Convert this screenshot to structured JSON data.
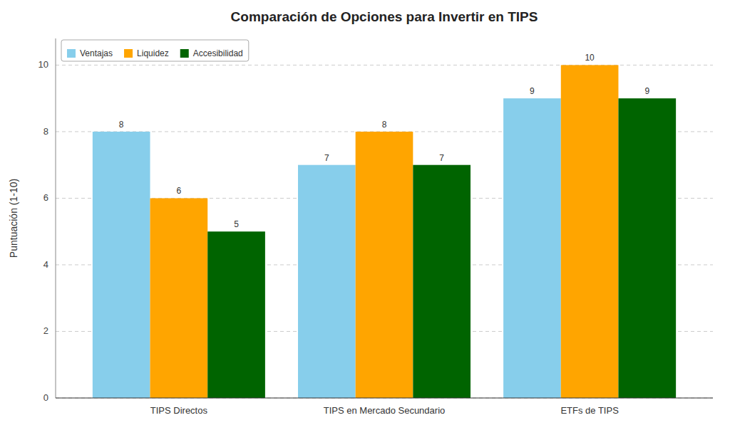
{
  "chart_data": {
    "type": "bar",
    "title": "Comparación de Opciones para Invertir en TIPS",
    "ylabel": "Puntuación (1-10)",
    "categories": [
      "TIPS Directos",
      "TIPS en Mercado Secundario",
      "ETFs de TIPS"
    ],
    "series": [
      {
        "name": "Ventajas",
        "color": "#87CEEB",
        "values": [
          8,
          7,
          9
        ]
      },
      {
        "name": "Liquidez",
        "color": "#FFA500",
        "values": [
          6,
          8,
          10
        ]
      },
      {
        "name": "Accesibilidad",
        "color": "#006400",
        "values": [
          5,
          7,
          9
        ]
      }
    ],
    "ylim": [
      0,
      10.8
    ],
    "yticks": [
      0,
      2,
      4,
      6,
      8,
      10
    ],
    "grid": true,
    "legend": "upper left",
    "data_labels": true
  }
}
